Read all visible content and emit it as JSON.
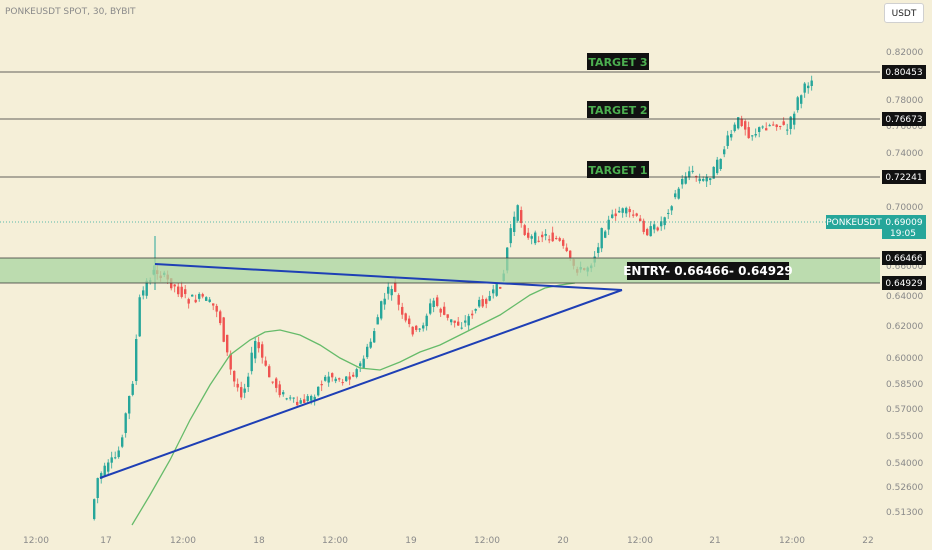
{
  "header": {
    "symbol": "PONKEUSDT SPOT, 30, BYBIT",
    "currency": "USDT"
  },
  "chart_data": {
    "type": "candlestick",
    "ylim": [
      0.505,
      0.83
    ],
    "y_ticks": [
      "0.82000",
      "0.80000",
      "0.78000",
      "0.76000",
      "0.74000",
      "0.72000",
      "0.70000",
      "0.68000",
      "0.66000",
      "0.64000",
      "0.62000",
      "0.60000",
      "0.58500",
      "0.57000",
      "0.55500",
      "0.54000",
      "0.52600",
      "0.51300"
    ],
    "x_ticks": [
      "12:00",
      "17",
      "12:00",
      "18",
      "12:00",
      "19",
      "12:00",
      "20",
      "12:00",
      "21",
      "12:00",
      "22"
    ],
    "levels": [
      {
        "name": "TARGET 3",
        "value": "0.80453"
      },
      {
        "name": "TARGET 2",
        "value": "0.76673"
      },
      {
        "name": "TARGET 1",
        "value": "0.72241"
      }
    ],
    "entry_zone": {
      "label": "ENTRY- 0.66466- 0.64929",
      "upper": "0.66466",
      "lower": "0.64929"
    },
    "current_price": {
      "symbol": "PONKEUSDT",
      "value": "0.69009",
      "countdown": "19:05"
    },
    "colors": {
      "up": "#26a69a",
      "down": "#ef5350",
      "ma": "#66bb6a",
      "trendline": "#1e3fb5",
      "zone": "#a8d5a2",
      "background": "#f5efd8"
    }
  }
}
